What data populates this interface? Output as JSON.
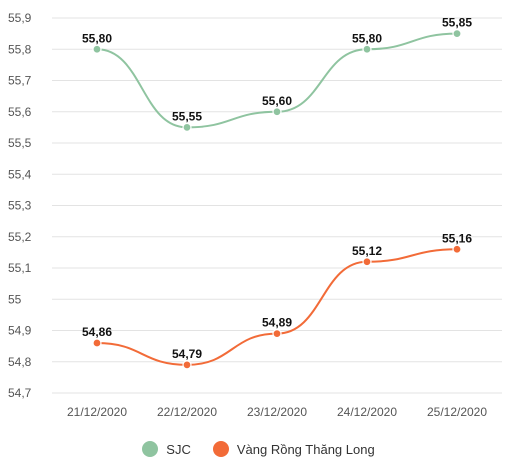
{
  "chart_data": {
    "type": "line",
    "categories": [
      "21/12/2020",
      "22/12/2020",
      "23/12/2020",
      "24/12/2020",
      "25/12/2020"
    ],
    "series": [
      {
        "name": "SJC",
        "values": [
          55.8,
          55.55,
          55.6,
          55.8,
          55.85
        ],
        "labels": [
          "55,80",
          "55,55",
          "55,60",
          "55,80",
          "55,85"
        ],
        "color": "#8fc4a0"
      },
      {
        "name": "Vàng Rồng Thăng Long",
        "values": [
          54.86,
          54.79,
          54.89,
          55.12,
          55.16
        ],
        "labels": [
          "54,86",
          "54,79",
          "54,89",
          "55,12",
          "55,16"
        ],
        "color": "#f26b38"
      }
    ],
    "y_ticks": [
      54.7,
      54.8,
      54.9,
      55,
      55.1,
      55.2,
      55.3,
      55.4,
      55.5,
      55.6,
      55.7,
      55.8,
      55.9
    ],
    "y_tick_labels": [
      "54,7",
      "54,8",
      "54,9",
      "55",
      "55,1",
      "55,2",
      "55,3",
      "55,4",
      "55,5",
      "55,6",
      "55,7",
      "55,8",
      "55,9"
    ],
    "ylim": [
      54.7,
      55.9
    ],
    "grid": true,
    "legend_position": "bottom"
  }
}
